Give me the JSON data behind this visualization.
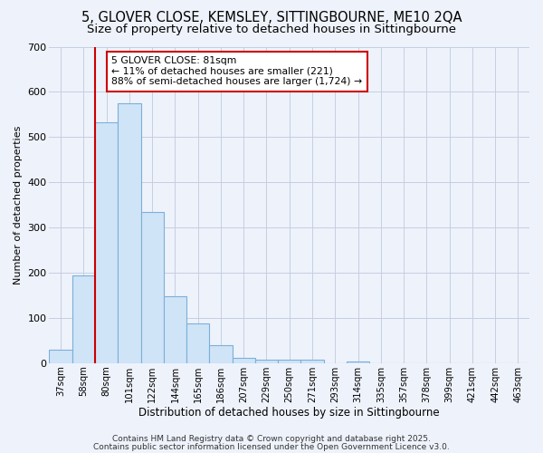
{
  "title1": "5, GLOVER CLOSE, KEMSLEY, SITTINGBOURNE, ME10 2QA",
  "title2": "Size of property relative to detached houses in Sittingbourne",
  "xlabel": "Distribution of detached houses by size in Sittingbourne",
  "ylabel": "Number of detached properties",
  "bar_labels": [
    "37sqm",
    "58sqm",
    "80sqm",
    "101sqm",
    "122sqm",
    "144sqm",
    "165sqm",
    "186sqm",
    "207sqm",
    "229sqm",
    "250sqm",
    "271sqm",
    "293sqm",
    "314sqm",
    "335sqm",
    "357sqm",
    "378sqm",
    "399sqm",
    "421sqm",
    "442sqm",
    "463sqm"
  ],
  "bar_values": [
    30,
    193,
    533,
    575,
    335,
    148,
    87,
    40,
    12,
    8,
    8,
    8,
    0,
    4,
    0,
    0,
    0,
    0,
    0,
    0,
    0
  ],
  "bar_color": "#d0e4f7",
  "bar_edge_color": "#7ab0d8",
  "vline_color": "#cc0000",
  "annotation_text": "5 GLOVER CLOSE: 81sqm\n← 11% of detached houses are smaller (221)\n88% of semi-detached houses are larger (1,724) →",
  "annotation_box_color": "#ffffff",
  "annotation_box_edge": "#cc0000",
  "footer1": "Contains HM Land Registry data © Crown copyright and database right 2025.",
  "footer2": "Contains public sector information licensed under the Open Government Licence v3.0.",
  "bg_color": "#eef2fb",
  "plot_bg_color": "#eef2fb",
  "grid_color": "#c5cfe0",
  "ylim": [
    0,
    700
  ],
  "title_fontsize": 10.5,
  "subtitle_fontsize": 9.5,
  "footer_fontsize": 6.5
}
